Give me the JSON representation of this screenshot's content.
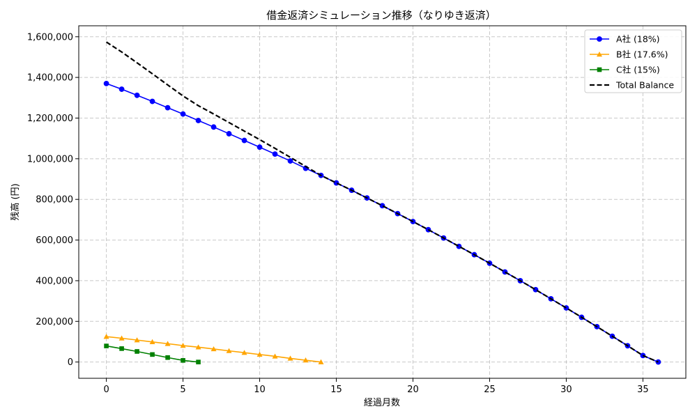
{
  "chart_data": {
    "type": "line",
    "title": "借金返済シミュレーション推移（なりゆき返済）",
    "xlabel": "経過月数",
    "ylabel": "残高 (円)",
    "xlim": [
      -1.8,
      37.8
    ],
    "ylim": [
      -80000,
      1654000
    ],
    "x_ticks": [
      0,
      5,
      10,
      15,
      20,
      25,
      30,
      35
    ],
    "y_ticks": [
      0,
      200000,
      400000,
      600000,
      800000,
      1000000,
      1200000,
      1400000,
      1600000
    ],
    "y_tick_labels": [
      "0",
      "200,000",
      "400,000",
      "600,000",
      "800,000",
      "1,000,000",
      "1,200,000",
      "1,400,000",
      "1,600,000"
    ],
    "grid": true,
    "legend_position": "top-right",
    "series": [
      {
        "name": "A社 (18%)",
        "color": "#0000ff",
        "marker": "circle",
        "line_style": "solid",
        "x": [
          0,
          1,
          2,
          3,
          4,
          5,
          6,
          7,
          8,
          9,
          10,
          11,
          12,
          13,
          14,
          15,
          16,
          17,
          18,
          19,
          20,
          21,
          22,
          23,
          24,
          25,
          26,
          27,
          28,
          29,
          30,
          31,
          32,
          33,
          34,
          35,
          36
        ],
        "values": [
          1370000,
          1342000,
          1312000,
          1282000,
          1251000,
          1220000,
          1188000,
          1156000,
          1123000,
          1090000,
          1057000,
          1023000,
          989000,
          953000,
          918000,
          881000,
          845000,
          807000,
          769000,
          730000,
          691000,
          651000,
          610000,
          569000,
          528000,
          486000,
          443000,
          400000,
          356000,
          311000,
          266000,
          220000,
          174000,
          127000,
          80000,
          32000,
          0
        ]
      },
      {
        "name": "B社 (17.6%)",
        "color": "#ffa500",
        "marker": "triangle",
        "line_style": "solid",
        "x": [
          0,
          1,
          2,
          3,
          4,
          5,
          6,
          7,
          8,
          9,
          10,
          11,
          12,
          13,
          14
        ],
        "values": [
          125000,
          117000,
          108000,
          99000,
          90000,
          81000,
          73000,
          64000,
          55000,
          46000,
          37000,
          28000,
          18000,
          9000,
          0
        ]
      },
      {
        "name": "C社 (15%)",
        "color": "#008000",
        "marker": "square",
        "line_style": "solid",
        "x": [
          0,
          1,
          2,
          3,
          4,
          5,
          6
        ],
        "values": [
          79000,
          66000,
          52000,
          37000,
          22000,
          8000,
          0
        ]
      },
      {
        "name": "Total Balance",
        "color": "#000000",
        "marker": "none",
        "line_style": "dashed",
        "x": [
          0,
          1,
          2,
          3,
          4,
          5,
          6,
          7,
          8,
          9,
          10,
          11,
          12,
          13,
          14,
          15,
          16,
          17,
          18,
          19,
          20,
          21,
          22,
          23,
          24,
          25,
          26,
          27,
          28,
          29,
          30,
          31,
          32,
          33,
          34,
          35,
          36
        ],
        "values": [
          1574000,
          1525000,
          1472000,
          1418000,
          1363000,
          1309000,
          1261000,
          1220000,
          1178000,
          1136000,
          1094000,
          1051000,
          1007000,
          962000,
          918000,
          881000,
          845000,
          807000,
          769000,
          730000,
          691000,
          651000,
          610000,
          569000,
          528000,
          486000,
          443000,
          400000,
          356000,
          311000,
          266000,
          220000,
          174000,
          127000,
          80000,
          32000,
          0
        ]
      }
    ]
  }
}
